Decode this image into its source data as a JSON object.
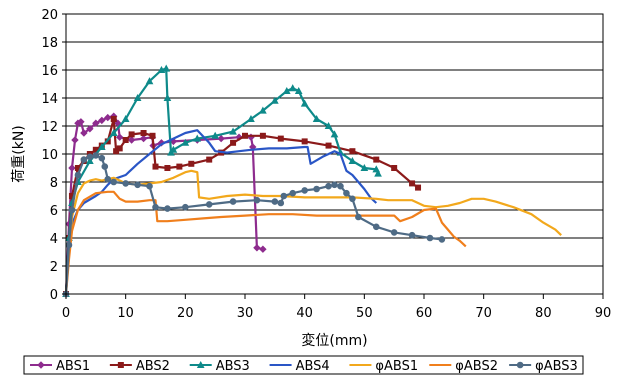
{
  "chart_data": {
    "type": "line",
    "title": "",
    "xlabel": "変位(mm)",
    "ylabel": "荷重(kN)",
    "xlim": [
      0,
      90
    ],
    "ylim": [
      0,
      20
    ],
    "x_ticks": [
      0,
      10,
      20,
      30,
      40,
      50,
      60,
      70,
      80,
      90
    ],
    "y_ticks": [
      0,
      2,
      4,
      6,
      8,
      10,
      12,
      14,
      16,
      18,
      20
    ],
    "grid": "horizontal",
    "legend_position": "bottom",
    "series": [
      {
        "name": "ABS1",
        "color": "#8e2c8e",
        "marker": "diamond",
        "points": [
          [
            0,
            0
          ],
          [
            0.5,
            5
          ],
          [
            1,
            9
          ],
          [
            1.5,
            11
          ],
          [
            2,
            12.2
          ],
          [
            2.5,
            12.3
          ],
          [
            3,
            11.5
          ],
          [
            4,
            11.8
          ],
          [
            5,
            12.2
          ],
          [
            6,
            12.4
          ],
          [
            7,
            12.6
          ],
          [
            8,
            12.7
          ],
          [
            8.7,
            12.2
          ],
          [
            9,
            11.2
          ],
          [
            11,
            11
          ],
          [
            13,
            11.1
          ],
          [
            14.5,
            11.2
          ],
          [
            14.6,
            10.6
          ],
          [
            16,
            10.8
          ],
          [
            18,
            10.9
          ],
          [
            22,
            11
          ],
          [
            26,
            11.1
          ],
          [
            29,
            11.2
          ],
          [
            31,
            11.2
          ],
          [
            31.3,
            10.5
          ],
          [
            32,
            3.3
          ],
          [
            33,
            3.2
          ]
        ]
      },
      {
        "name": "ABS2",
        "color": "#8b1a1a",
        "marker": "square",
        "points": [
          [
            0,
            0
          ],
          [
            0.5,
            4
          ],
          [
            1,
            7
          ],
          [
            2,
            9
          ],
          [
            3,
            9.5
          ],
          [
            4,
            10
          ],
          [
            5,
            10.3
          ],
          [
            6,
            10.6
          ],
          [
            7,
            10.9
          ],
          [
            8,
            12.5
          ],
          [
            8.4,
            10.2
          ],
          [
            9,
            10.4
          ],
          [
            10,
            11
          ],
          [
            11,
            11.4
          ],
          [
            13,
            11.5
          ],
          [
            14.5,
            11.3
          ],
          [
            15,
            9.1
          ],
          [
            17,
            9
          ],
          [
            19,
            9.1
          ],
          [
            21,
            9.3
          ],
          [
            24,
            9.6
          ],
          [
            26,
            10.1
          ],
          [
            28,
            10.8
          ],
          [
            30,
            11.3
          ],
          [
            33,
            11.3
          ],
          [
            36,
            11.1
          ],
          [
            40,
            10.9
          ],
          [
            44,
            10.6
          ],
          [
            48,
            10.2
          ],
          [
            52,
            9.6
          ],
          [
            55,
            9
          ],
          [
            58,
            7.9
          ],
          [
            59,
            7.6
          ]
        ]
      },
      {
        "name": "ABS3",
        "color": "#0e8a8a",
        "marker": "triangle",
        "points": [
          [
            0,
            0
          ],
          [
            0.5,
            4
          ],
          [
            1,
            6.5
          ],
          [
            2,
            8
          ],
          [
            4,
            9.5
          ],
          [
            6,
            10.5
          ],
          [
            8,
            11.5
          ],
          [
            10,
            12.5
          ],
          [
            12,
            14
          ],
          [
            14,
            15.2
          ],
          [
            16,
            16
          ],
          [
            16.8,
            16.1
          ],
          [
            17,
            14
          ],
          [
            17.6,
            10.1
          ],
          [
            18,
            10.3
          ],
          [
            20,
            10.8
          ],
          [
            22,
            11.1
          ],
          [
            25,
            11.3
          ],
          [
            28,
            11.6
          ],
          [
            31,
            12.5
          ],
          [
            33,
            13.1
          ],
          [
            35,
            13.8
          ],
          [
            37,
            14.5
          ],
          [
            38,
            14.7
          ],
          [
            39,
            14.5
          ],
          [
            40,
            13.6
          ],
          [
            42,
            12.5
          ],
          [
            44,
            12
          ],
          [
            45,
            11.4
          ],
          [
            46,
            10.1
          ],
          [
            48,
            9.5
          ],
          [
            50,
            9
          ],
          [
            52,
            8.9
          ],
          [
            52.3,
            8.6
          ]
        ]
      },
      {
        "name": "ABS4",
        "color": "#2a56c6",
        "marker": "none",
        "points": [
          [
            0,
            0
          ],
          [
            0.5,
            3.5
          ],
          [
            1,
            5
          ],
          [
            2,
            6
          ],
          [
            3,
            6.5
          ],
          [
            5,
            7
          ],
          [
            6,
            7.3
          ],
          [
            7,
            7.8
          ],
          [
            8,
            8.2
          ],
          [
            10,
            8.5
          ],
          [
            12,
            9.3
          ],
          [
            14,
            10
          ],
          [
            16,
            10.7
          ],
          [
            18,
            11.1
          ],
          [
            20,
            11.5
          ],
          [
            22,
            11.7
          ],
          [
            24,
            10.8
          ],
          [
            25,
            10.2
          ],
          [
            27,
            10.1
          ],
          [
            29,
            10.2
          ],
          [
            31,
            10.3
          ],
          [
            34,
            10.4
          ],
          [
            37,
            10.4
          ],
          [
            40,
            10.5
          ],
          [
            40.5,
            10.5
          ],
          [
            41,
            9.3
          ],
          [
            43,
            9.8
          ],
          [
            45,
            10.2
          ],
          [
            46,
            10
          ],
          [
            47,
            8.8
          ],
          [
            48,
            8.5
          ],
          [
            50,
            7.5
          ],
          [
            51,
            6.9
          ],
          [
            52,
            6.5
          ]
        ]
      },
      {
        "name": "φABS1",
        "color": "#f2a81c",
        "marker": "none",
        "points": [
          [
            0,
            0
          ],
          [
            0.5,
            3
          ],
          [
            1,
            5.5
          ],
          [
            2,
            7.2
          ],
          [
            3,
            7.9
          ],
          [
            4,
            8.1
          ],
          [
            5,
            8.2
          ],
          [
            6,
            8.1
          ],
          [
            7,
            8.2
          ],
          [
            8,
            8.3
          ],
          [
            10,
            7.9
          ],
          [
            12,
            7.8
          ],
          [
            14,
            7.9
          ],
          [
            16,
            8
          ],
          [
            18,
            8.3
          ],
          [
            20,
            8.7
          ],
          [
            21,
            8.8
          ],
          [
            22,
            8.7
          ],
          [
            22.3,
            6.9
          ],
          [
            24,
            6.8
          ],
          [
            27,
            7
          ],
          [
            30,
            7.1
          ],
          [
            33,
            7
          ],
          [
            36,
            7
          ],
          [
            40,
            6.9
          ],
          [
            44,
            6.9
          ],
          [
            48,
            6.9
          ],
          [
            52,
            6.8
          ],
          [
            54,
            6.7
          ],
          [
            56,
            6.7
          ],
          [
            58,
            6.7
          ],
          [
            60,
            6.3
          ],
          [
            62,
            6.2
          ],
          [
            64,
            6.3
          ],
          [
            66,
            6.5
          ],
          [
            68,
            6.8
          ],
          [
            70,
            6.8
          ],
          [
            72,
            6.6
          ],
          [
            75,
            6.2
          ],
          [
            78,
            5.7
          ],
          [
            80,
            5.1
          ],
          [
            82,
            4.6
          ],
          [
            83,
            4.2
          ]
        ]
      },
      {
        "name": "φABS2",
        "color": "#f07f1c",
        "marker": "none",
        "points": [
          [
            0,
            0
          ],
          [
            0.5,
            2.5
          ],
          [
            1,
            4.5
          ],
          [
            2,
            6
          ],
          [
            3,
            6.7
          ],
          [
            5,
            7.2
          ],
          [
            7,
            7.3
          ],
          [
            8,
            7.3
          ],
          [
            9,
            6.8
          ],
          [
            10,
            6.6
          ],
          [
            12,
            6.6
          ],
          [
            14,
            6.7
          ],
          [
            15,
            6.7
          ],
          [
            15.3,
            5.2
          ],
          [
            17,
            5.2
          ],
          [
            20,
            5.3
          ],
          [
            23,
            5.4
          ],
          [
            26,
            5.5
          ],
          [
            30,
            5.6
          ],
          [
            34,
            5.7
          ],
          [
            38,
            5.7
          ],
          [
            42,
            5.6
          ],
          [
            46,
            5.6
          ],
          [
            50,
            5.6
          ],
          [
            53,
            5.6
          ],
          [
            55,
            5.6
          ],
          [
            56,
            5.2
          ],
          [
            58,
            5.5
          ],
          [
            60,
            6
          ],
          [
            62,
            6.1
          ],
          [
            63,
            5.1
          ],
          [
            64,
            4.6
          ],
          [
            65,
            4.1
          ],
          [
            66,
            3.8
          ],
          [
            67,
            3.4
          ]
        ]
      },
      {
        "name": "φABS3",
        "color": "#4f6b85",
        "marker": "circle",
        "points": [
          [
            0,
            0
          ],
          [
            0.5,
            3.5
          ],
          [
            1,
            6
          ],
          [
            2,
            8.5
          ],
          [
            3,
            9.6
          ],
          [
            4,
            9.8
          ],
          [
            5,
            9.9
          ],
          [
            6,
            9.7
          ],
          [
            6.5,
            9.1
          ],
          [
            7,
            8.2
          ],
          [
            8,
            8
          ],
          [
            10,
            7.9
          ],
          [
            12,
            7.8
          ],
          [
            14,
            7.7
          ],
          [
            15,
            6.2
          ],
          [
            17,
            6.1
          ],
          [
            20,
            6.2
          ],
          [
            24,
            6.4
          ],
          [
            28,
            6.6
          ],
          [
            32,
            6.7
          ],
          [
            35,
            6.6
          ],
          [
            36,
            6.5
          ],
          [
            36.5,
            7
          ],
          [
            38,
            7.2
          ],
          [
            40,
            7.4
          ],
          [
            42,
            7.5
          ],
          [
            44,
            7.7
          ],
          [
            45,
            7.8
          ],
          [
            46,
            7.7
          ],
          [
            47,
            7.2
          ],
          [
            48,
            6.8
          ],
          [
            49,
            5.5
          ],
          [
            52,
            4.8
          ],
          [
            55,
            4.4
          ],
          [
            58,
            4.2
          ],
          [
            61,
            4
          ],
          [
            63,
            3.9
          ]
        ]
      }
    ]
  }
}
